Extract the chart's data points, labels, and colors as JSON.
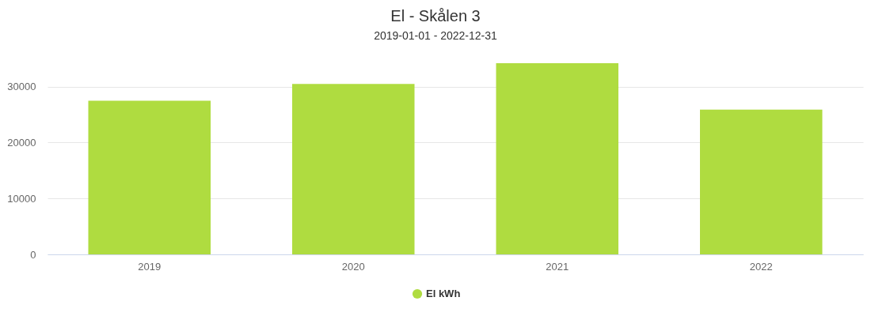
{
  "chart_data": {
    "type": "bar",
    "title": "El - Skålen 3",
    "subtitle": "2019-01-01 - 2022-12-31",
    "categories": [
      "2019",
      "2020",
      "2021",
      "2022"
    ],
    "series": [
      {
        "name": "El kWh",
        "color": "#afdc40",
        "values": [
          27500,
          30500,
          34200,
          25900
        ]
      }
    ],
    "ylim": [
      0,
      34200
    ],
    "yticks": [
      0,
      10000,
      20000,
      30000
    ],
    "grid": "y",
    "legend": "bottom"
  }
}
